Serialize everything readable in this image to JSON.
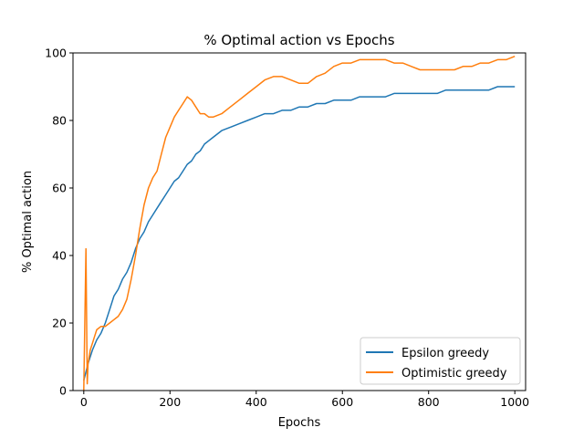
{
  "chart_data": {
    "type": "line",
    "title": "% Optimal action vs Epochs",
    "xlabel": "Epochs",
    "ylabel": "% Optimal action",
    "xlim": [
      -25,
      1025
    ],
    "ylim": [
      0,
      100
    ],
    "xticks": [
      0,
      200,
      400,
      600,
      800,
      1000
    ],
    "yticks": [
      0,
      20,
      40,
      60,
      80,
      100
    ],
    "grid": false,
    "legend_position": "lower-right",
    "series": [
      {
        "name": "Epsilon greedy",
        "color": "#1f77b4",
        "x": [
          0,
          10,
          20,
          30,
          40,
          50,
          60,
          70,
          80,
          90,
          100,
          110,
          120,
          130,
          140,
          150,
          160,
          170,
          180,
          190,
          200,
          210,
          220,
          230,
          240,
          250,
          260,
          270,
          280,
          290,
          300,
          320,
          340,
          360,
          380,
          400,
          420,
          440,
          460,
          480,
          500,
          520,
          540,
          560,
          580,
          600,
          620,
          640,
          660,
          680,
          700,
          720,
          740,
          760,
          780,
          800,
          820,
          840,
          860,
          880,
          900,
          920,
          940,
          960,
          980,
          1000
        ],
        "y": [
          3,
          8,
          12,
          15,
          17,
          20,
          24,
          28,
          30,
          33,
          35,
          38,
          42,
          45,
          47,
          50,
          52,
          54,
          56,
          58,
          60,
          62,
          63,
          65,
          67,
          68,
          70,
          71,
          73,
          74,
          75,
          77,
          78,
          79,
          80,
          81,
          82,
          82,
          83,
          83,
          84,
          84,
          85,
          85,
          86,
          86,
          86,
          87,
          87,
          87,
          87,
          88,
          88,
          88,
          88,
          88,
          88,
          89,
          89,
          89,
          89,
          89,
          89,
          90,
          90,
          90
        ]
      },
      {
        "name": "Optimistic greedy",
        "color": "#ff7f0e",
        "x": [
          0,
          5,
          8,
          10,
          15,
          20,
          25,
          30,
          40,
          50,
          60,
          70,
          80,
          90,
          100,
          110,
          120,
          130,
          140,
          150,
          160,
          170,
          180,
          190,
          200,
          210,
          220,
          230,
          240,
          250,
          260,
          270,
          280,
          290,
          300,
          320,
          340,
          360,
          380,
          400,
          420,
          440,
          460,
          480,
          500,
          520,
          540,
          560,
          580,
          600,
          620,
          640,
          660,
          680,
          700,
          720,
          740,
          760,
          780,
          800,
          820,
          840,
          860,
          880,
          900,
          920,
          940,
          960,
          980,
          1000
        ],
        "y": [
          0,
          42,
          2,
          8,
          12,
          14,
          16,
          18,
          19,
          19,
          20,
          21,
          22,
          24,
          27,
          33,
          40,
          48,
          55,
          60,
          63,
          65,
          70,
          75,
          78,
          81,
          83,
          85,
          87,
          86,
          84,
          82,
          82,
          81,
          81,
          82,
          84,
          86,
          88,
          90,
          92,
          93,
          93,
          92,
          91,
          91,
          93,
          94,
          96,
          97,
          97,
          98,
          98,
          98,
          98,
          97,
          97,
          96,
          95,
          95,
          95,
          95,
          95,
          96,
          96,
          97,
          97,
          98,
          98,
          99
        ]
      }
    ]
  }
}
